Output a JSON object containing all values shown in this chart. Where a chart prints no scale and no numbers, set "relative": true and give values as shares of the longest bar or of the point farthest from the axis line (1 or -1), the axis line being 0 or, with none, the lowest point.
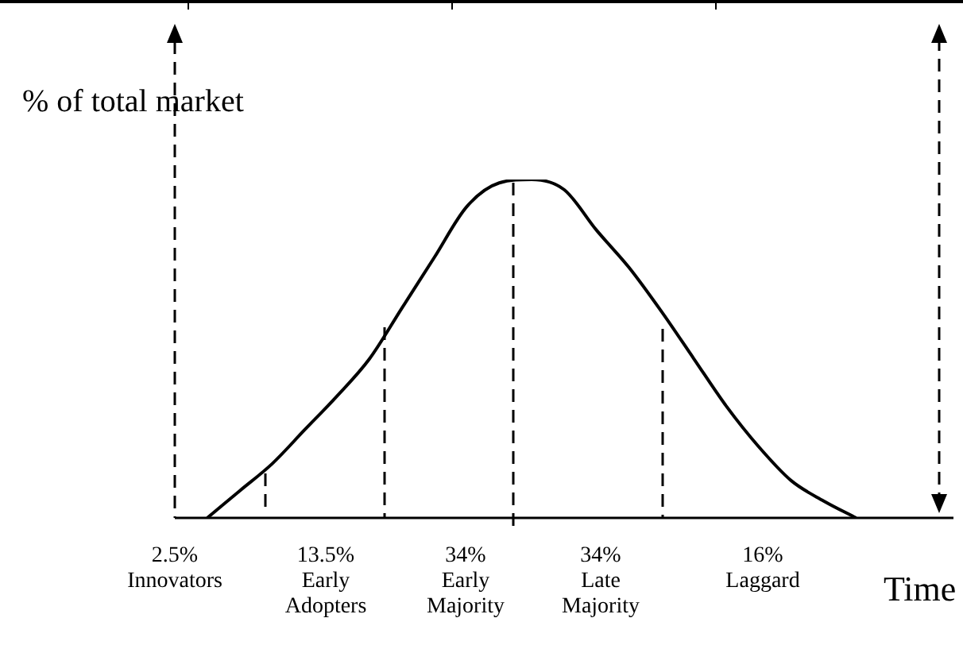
{
  "chart_data": {
    "type": "line",
    "relative": true,
    "ylabel": "% of total market",
    "xlabel": "Time",
    "color": "#000000",
    "line_style": "solid",
    "marker": "none",
    "legend": false,
    "categories": [
      null,
      null,
      null,
      null,
      null,
      null,
      null,
      null,
      null,
      null,
      null,
      null,
      null,
      null,
      null,
      null,
      null,
      null,
      null,
      null,
      null,
      null,
      null,
      null,
      null
    ],
    "values": [
      null,
      0,
      0.08,
      0.16,
      0.26,
      0.36,
      0.47,
      0.62,
      0.77,
      0.92,
      0.99,
      1,
      0.97,
      0.85,
      0.74,
      0.61,
      0.47,
      0.33,
      0.21,
      0.11,
      0.05,
      0,
      null,
      null,
      null
    ],
    "annotations": [
      "2.5%\nInnovators",
      "13.5%\nEarly\nAdopters",
      "34%\nEarly\nMajority",
      "34%\nLate\nMajority",
      "16%\nLaggard"
    ]
  }
}
